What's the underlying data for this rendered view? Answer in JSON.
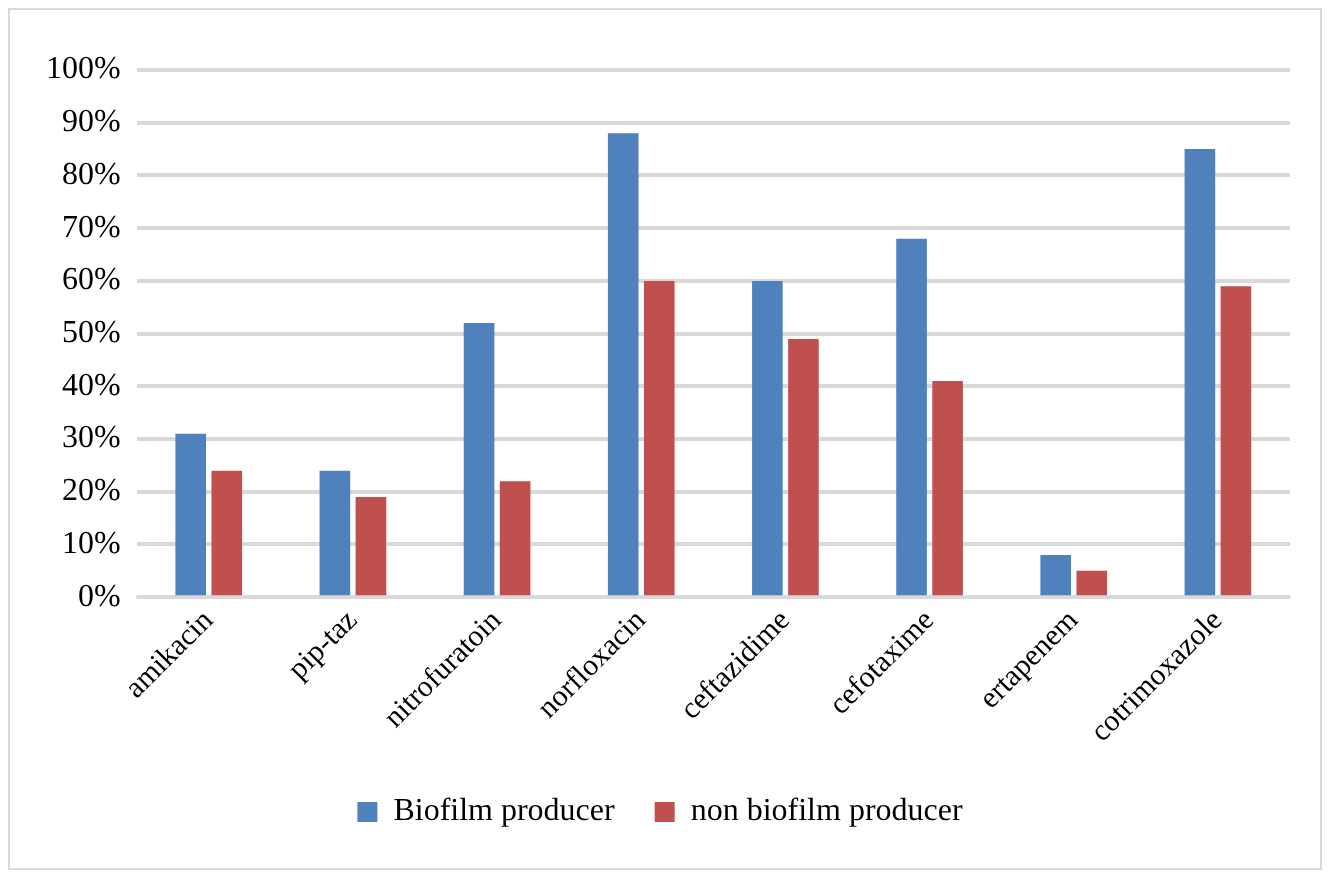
{
  "chart_data": {
    "type": "bar",
    "categories": [
      "amikacin",
      "pip-taz",
      "nitrofuratoin",
      "norfloxacin",
      "ceftazidime",
      "cefotaxime",
      "ertapenem",
      "cotrimoxazole"
    ],
    "series": [
      {
        "name": "Biofilm producer",
        "color": "#4f81bd",
        "values": [
          31,
          24,
          52,
          88,
          60,
          68,
          8,
          85
        ]
      },
      {
        "name": "non biofilm producer",
        "color": "#c0504d",
        "values": [
          24,
          19,
          22,
          60,
          49,
          41,
          5,
          59
        ]
      }
    ],
    "ylim": [
      0,
      100
    ],
    "yticks": [
      {
        "value": 0,
        "label": "0%"
      },
      {
        "value": 10,
        "label": "10%"
      },
      {
        "value": 20,
        "label": "20%"
      },
      {
        "value": 30,
        "label": "30%"
      },
      {
        "value": 40,
        "label": "40%"
      },
      {
        "value": 50,
        "label": "50%"
      },
      {
        "value": 60,
        "label": "60%"
      },
      {
        "value": 70,
        "label": "70%"
      },
      {
        "value": 80,
        "label": "80%"
      },
      {
        "value": 90,
        "label": "90%"
      },
      {
        "value": 100,
        "label": "100%"
      }
    ],
    "grid": "y",
    "legend": "bottom"
  }
}
